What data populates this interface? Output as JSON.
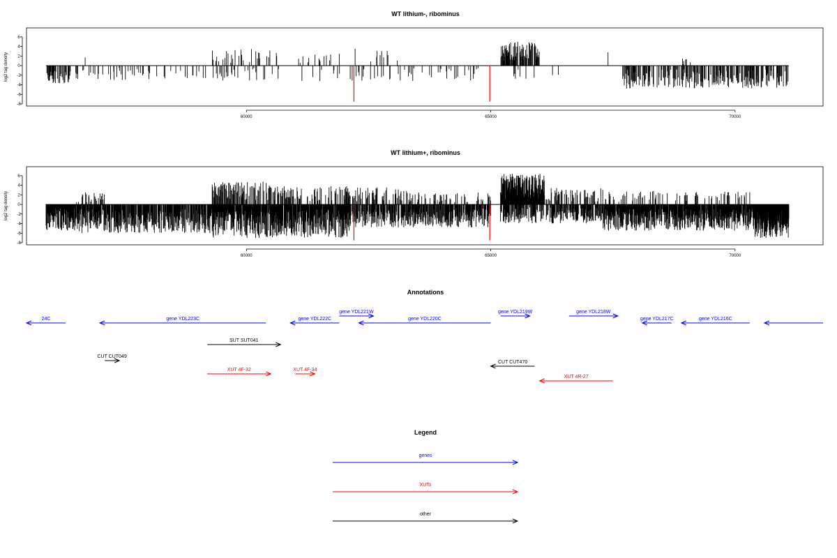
{
  "chart_data": [
    {
      "type": "bar",
      "title": "WT lithium-, ribominus",
      "ylabel": "log2 tag density",
      "xlim": [
        55500,
        71800
      ],
      "ylim": [
        -8,
        7
      ],
      "xticks": [
        60000,
        65000,
        70000
      ],
      "yticks": [
        -8,
        -6,
        -4,
        -2,
        0,
        2,
        4,
        6
      ],
      "density": "sparse",
      "highlight_color": "#ff0000",
      "highlights": [
        {
          "x": 62200,
          "y": -7.5
        },
        {
          "x": 64980,
          "y": -7.5
        }
      ],
      "clusters": [
        {
          "x0": 55900,
          "x1": 56400,
          "sign": -1,
          "max": 3.8,
          "density": 0.6
        },
        {
          "x0": 56500,
          "x1": 59200,
          "sign": -1,
          "max": 3.0,
          "density": 0.12
        },
        {
          "x0": 56700,
          "x1": 56700,
          "sign": 1,
          "max": 3.0,
          "density": 1
        },
        {
          "x0": 59200,
          "x1": 60500,
          "sign": 1,
          "max": 3.8,
          "density": 0.18
        },
        {
          "x0": 59200,
          "x1": 62000,
          "sign": -1,
          "max": 3.5,
          "density": 0.14
        },
        {
          "x0": 60500,
          "x1": 62000,
          "sign": 1,
          "max": 2.8,
          "density": 0.1
        },
        {
          "x0": 62000,
          "x1": 63200,
          "sign": 1,
          "max": 4.0,
          "density": 0.08
        },
        {
          "x0": 62100,
          "x1": 64900,
          "sign": -1,
          "max": 3.2,
          "density": 0.14
        },
        {
          "x0": 65200,
          "x1": 66000,
          "sign": 1,
          "max": 5.0,
          "density": 0.75
        },
        {
          "x0": 65200,
          "x1": 66600,
          "sign": -1,
          "max": 3.0,
          "density": 0.06
        },
        {
          "x0": 67400,
          "x1": 67400,
          "sign": 1,
          "max": 3.0,
          "density": 1
        },
        {
          "x0": 67700,
          "x1": 71100,
          "sign": -1,
          "max": 4.8,
          "density": 0.55
        },
        {
          "x0": 68900,
          "x1": 69200,
          "sign": 1,
          "max": 1.6,
          "density": 0.3
        }
      ]
    },
    {
      "type": "bar",
      "title": "WT lithium+, ribominus",
      "ylabel": "log2 tag density",
      "xlim": [
        55500,
        71800
      ],
      "ylim": [
        -8,
        7
      ],
      "xticks": [
        60000,
        65000,
        70000
      ],
      "yticks": [
        -8,
        -6,
        -4,
        -2,
        0,
        2,
        4,
        6
      ],
      "density": "dense",
      "highlight_color": "#ff0000",
      "highlights": [
        {
          "x": 62200,
          "y": -7.5
        },
        {
          "x": 64980,
          "y": -7.5
        }
      ],
      "clusters": [
        {
          "x0": 55900,
          "x1": 56500,
          "sign": -1,
          "max": 5.5,
          "density": 1
        },
        {
          "x0": 56500,
          "x1": 59300,
          "sign": -1,
          "max": 6.0,
          "density": 0.85
        },
        {
          "x0": 56500,
          "x1": 57100,
          "sign": 1,
          "max": 2.8,
          "density": 0.25
        },
        {
          "x0": 59300,
          "x1": 60500,
          "sign": 1,
          "max": 4.8,
          "density": 0.55
        },
        {
          "x0": 59300,
          "x1": 62100,
          "sign": -1,
          "max": 7.0,
          "density": 0.95
        },
        {
          "x0": 60500,
          "x1": 62100,
          "sign": 1,
          "max": 3.8,
          "density": 0.4
        },
        {
          "x0": 62100,
          "x1": 63300,
          "sign": 1,
          "max": 3.6,
          "density": 0.35
        },
        {
          "x0": 62100,
          "x1": 65000,
          "sign": -1,
          "max": 4.8,
          "density": 0.8
        },
        {
          "x0": 63300,
          "x1": 65000,
          "sign": 1,
          "max": 2.5,
          "density": 0.2
        },
        {
          "x0": 65200,
          "x1": 66100,
          "sign": 1,
          "max": 6.4,
          "density": 1
        },
        {
          "x0": 65200,
          "x1": 67300,
          "sign": -1,
          "max": 4.0,
          "density": 0.7
        },
        {
          "x0": 66100,
          "x1": 67300,
          "sign": 1,
          "max": 3.5,
          "density": 0.35
        },
        {
          "x0": 67300,
          "x1": 71100,
          "sign": -1,
          "max": 5.5,
          "density": 0.95
        },
        {
          "x0": 67300,
          "x1": 70300,
          "sign": 1,
          "max": 2.8,
          "density": 0.2
        },
        {
          "x0": 70400,
          "x1": 71100,
          "sign": -1,
          "max": 7.0,
          "density": 1
        }
      ]
    }
  ],
  "annotations": {
    "title": "Annotations",
    "features": [
      {
        "label": "24C",
        "x0": 55500,
        "x1": 56300,
        "strand": "-",
        "kind": "gene",
        "row": 0
      },
      {
        "label": "gene YDL223C",
        "x0": 57000,
        "x1": 60400,
        "strand": "-",
        "kind": "gene",
        "row": 0
      },
      {
        "label": "gene YDL222C",
        "x0": 60900,
        "x1": 61900,
        "strand": "-",
        "kind": "gene",
        "row": 0
      },
      {
        "label": "gene YDL221W",
        "x0": 61900,
        "x1": 62600,
        "strand": "+",
        "kind": "gene",
        "row": -1
      },
      {
        "label": "gene YDL220C",
        "x0": 62300,
        "x1": 65000,
        "strand": "-",
        "kind": "gene",
        "row": 0
      },
      {
        "label": "gene YDL219W",
        "x0": 65200,
        "x1": 65800,
        "strand": "+",
        "kind": "gene",
        "row": -1
      },
      {
        "label": "gene YDL218W",
        "x0": 66600,
        "x1": 67600,
        "strand": "+",
        "kind": "gene",
        "row": -1
      },
      {
        "label": "gene YDL217C",
        "x0": 68100,
        "x1": 68700,
        "strand": "-",
        "kind": "gene",
        "row": 0
      },
      {
        "label": "gene YDL216C",
        "x0": 68900,
        "x1": 70300,
        "strand": "-",
        "kind": "gene",
        "row": 0
      },
      {
        "label": "",
        "x0": 70600,
        "x1": 71800,
        "strand": "-",
        "kind": "gene",
        "row": 0
      },
      {
        "label": "SUT SUT041",
        "x0": 59200,
        "x1": 60700,
        "strand": "+",
        "kind": "other",
        "row": 1
      },
      {
        "label": "CUT CUT049",
        "x0": 57100,
        "x1": 57400,
        "strand": "+",
        "kind": "other",
        "row": 2
      },
      {
        "label": "CUT CUT470",
        "x0": 65000,
        "x1": 65900,
        "strand": "-",
        "kind": "other",
        "row": 3
      },
      {
        "label": "XUT 4F-32",
        "x0": 59200,
        "x1": 60500,
        "strand": "+",
        "kind": "xut",
        "row": 4
      },
      {
        "label": "XUT 4F-34",
        "x0": 61000,
        "x1": 61400,
        "strand": "+",
        "kind": "xut",
        "row": 4
      },
      {
        "label": "XUT 4R-27",
        "x0": 66000,
        "x1": 67500,
        "strand": "-",
        "kind": "xut",
        "row": 5
      }
    ]
  },
  "legend": {
    "title": "Legend",
    "items": [
      {
        "label": "genes",
        "color": "#0000ff"
      },
      {
        "label": "XUTs",
        "color": "#ff0000"
      },
      {
        "label": "other",
        "color": "#000000"
      }
    ]
  },
  "colors": {
    "gene": "#0000ff",
    "xut": "#ff0000",
    "other": "#000000"
  }
}
